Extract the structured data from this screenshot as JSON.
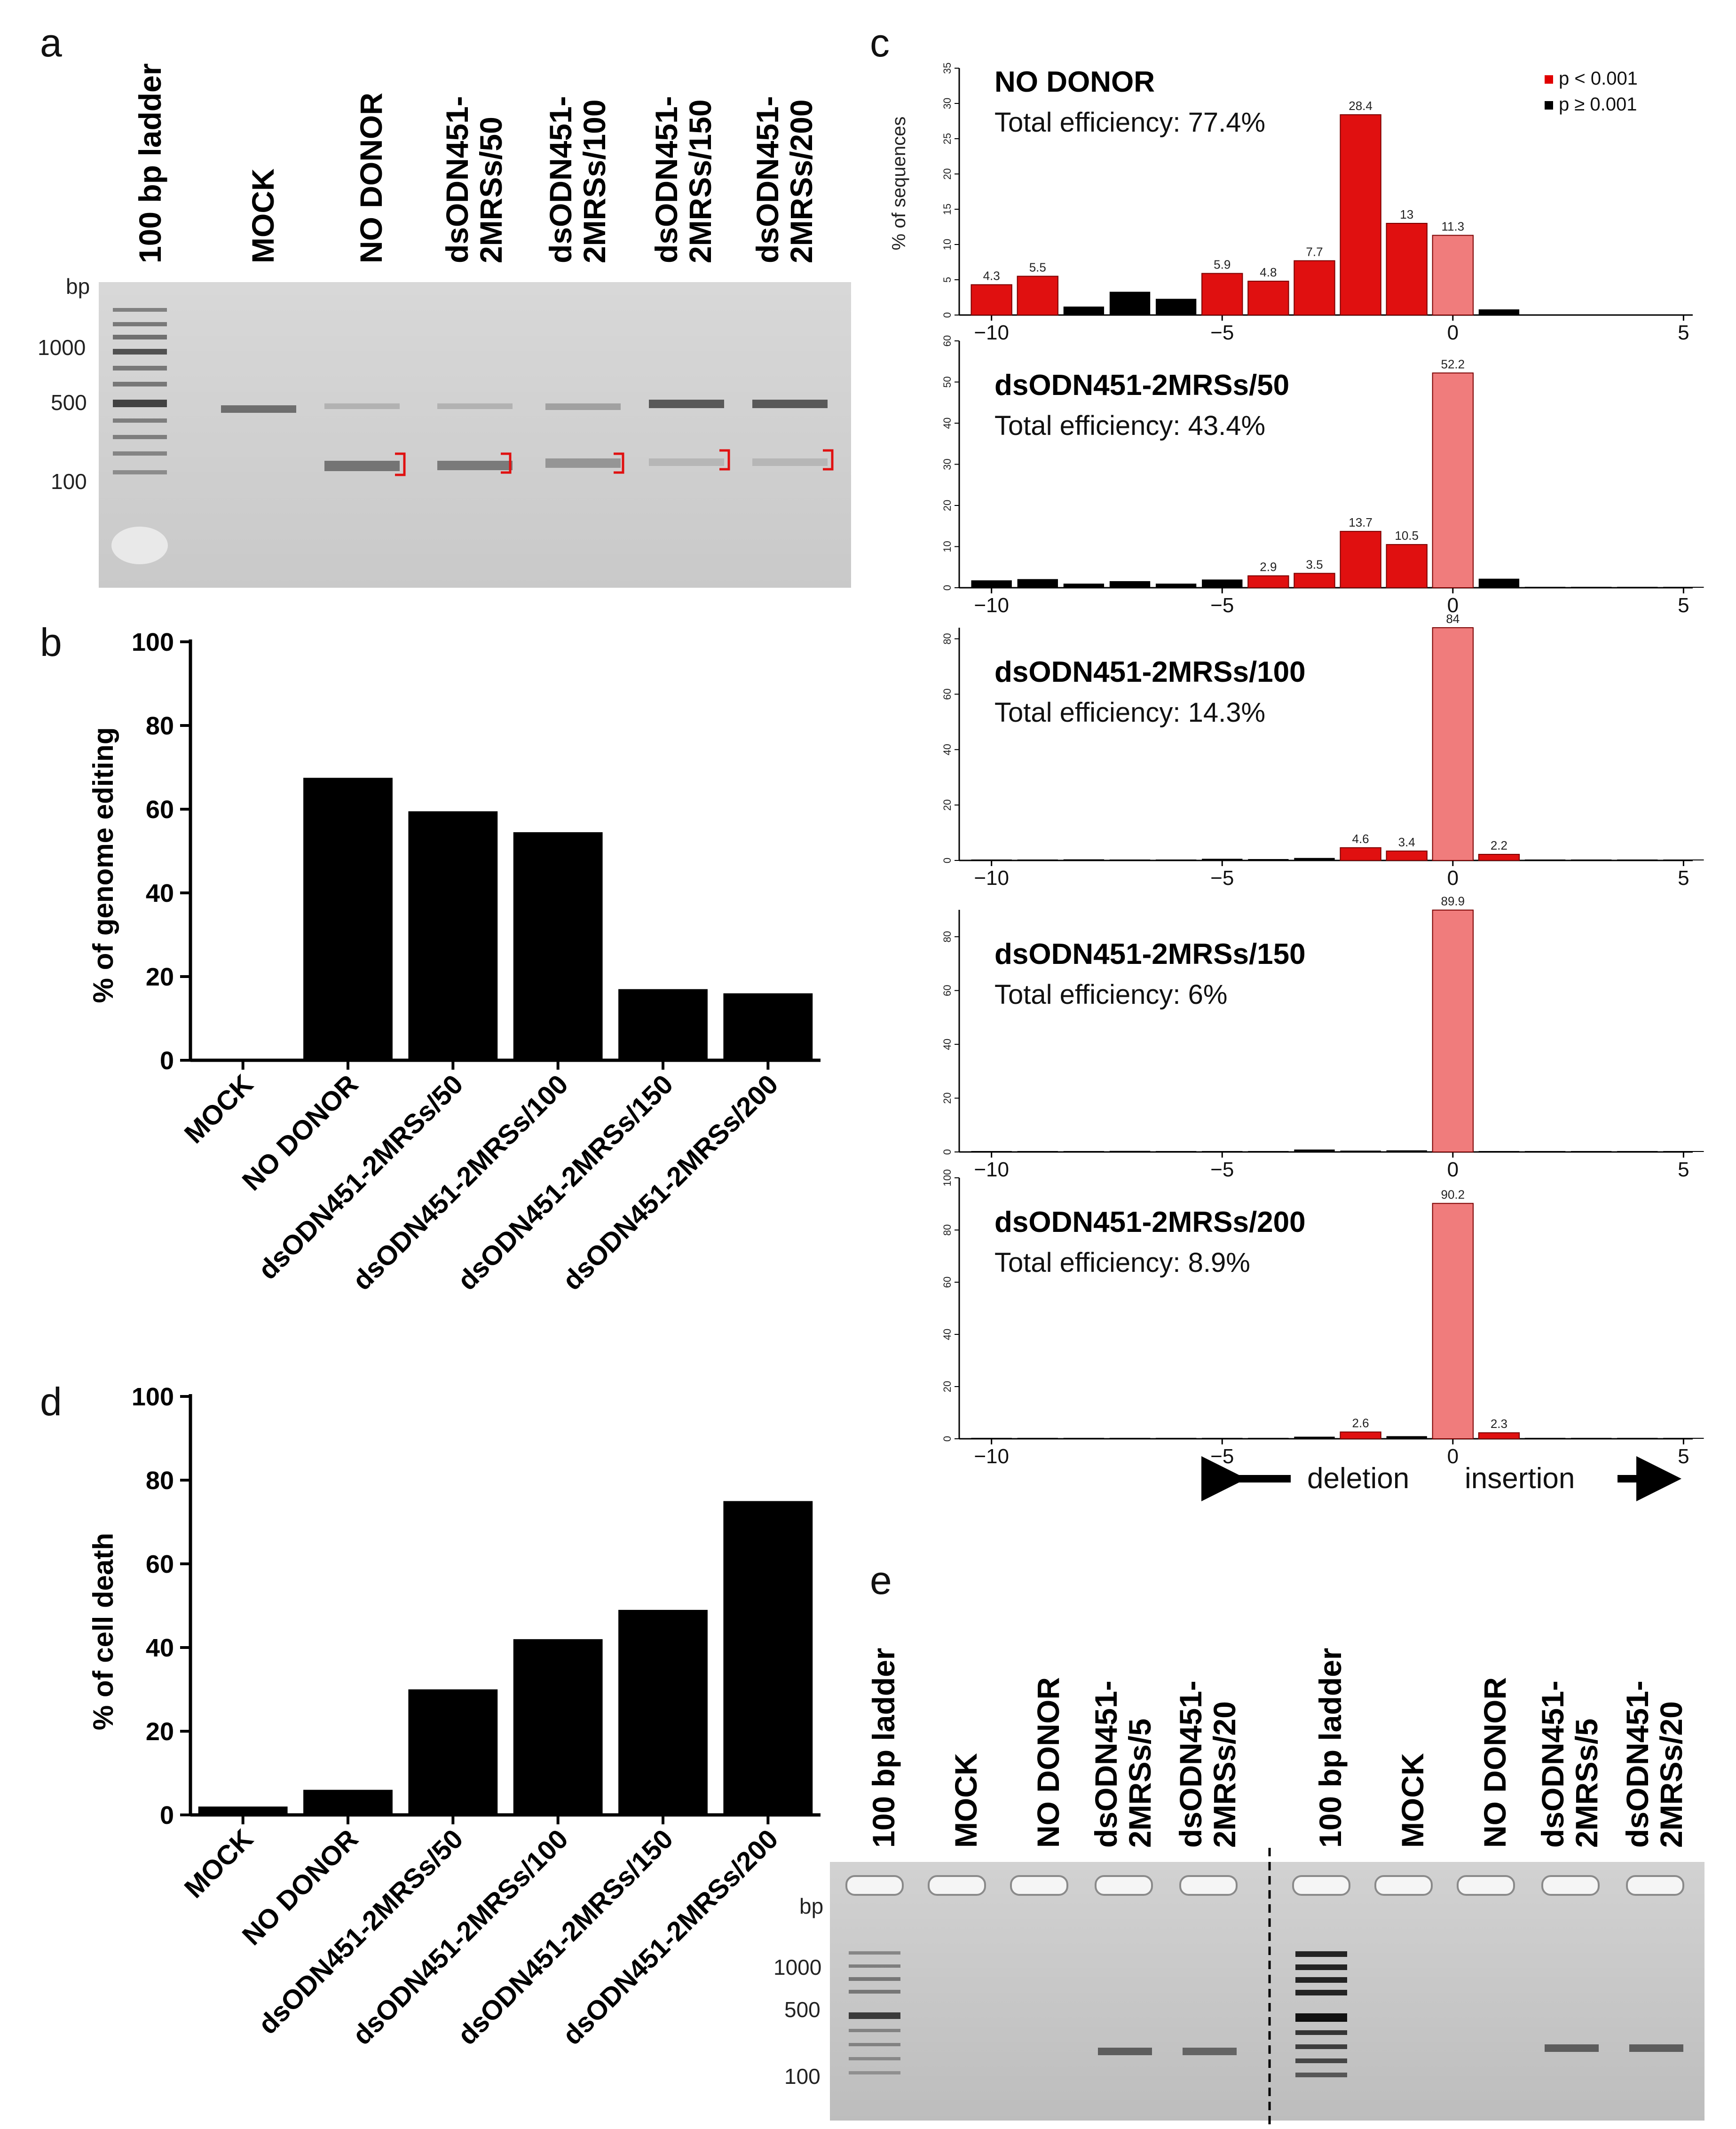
{
  "panel_a": {
    "letter": "a",
    "lanes": [
      "100 bp ladder",
      "MOCK",
      "NO DONOR",
      "dsODN451-\n2MRSs/50",
      "dsODN451-\n2MRSs/100",
      "dsODN451-\n2MRSs/150",
      "dsODN451-\n2MRSs/200"
    ],
    "bp_unit": "bp",
    "markers": [
      "1000",
      "500",
      "100"
    ]
  },
  "panel_e": {
    "letter": "e",
    "lanes": [
      "100 bp ladder",
      "MOCK",
      "NO DONOR",
      "dsODN451-\n2MRSs/5",
      "dsODN451-\n2MRSs/20",
      "100 bp ladder",
      "MOCK",
      "NO DONOR",
      "dsODN451-\n2MRSs/5",
      "dsODN451-\n2MRSs/20"
    ],
    "bp_unit": "bp",
    "markers": [
      "1000",
      "500",
      "100"
    ]
  },
  "chart_data": [
    {
      "id": "b",
      "letter": "b",
      "type": "bar",
      "ylabel": "% of genome editing",
      "ylim": [
        0,
        100
      ],
      "yticks": [
        0,
        20,
        40,
        60,
        80,
        100
      ],
      "categories": [
        "MOCK",
        "NO DONOR",
        "dsODN451-2MRSs/50",
        "dsODN451-2MRSs/100",
        "dsODN451-2MRSs/150",
        "dsODN451-2MRSs/200"
      ],
      "values": [
        0,
        67.5,
        59.5,
        54.5,
        17,
        16
      ],
      "color": "#000000"
    },
    {
      "id": "d",
      "letter": "d",
      "type": "bar",
      "ylabel": "% of cell death",
      "ylim": [
        0,
        100
      ],
      "yticks": [
        0,
        20,
        40,
        60,
        80,
        100
      ],
      "categories": [
        "MOCK",
        "NO DONOR",
        "dsODN451-2MRSs/50",
        "dsODN451-2MRSs/100",
        "dsODN451-2MRSs/150",
        "dsODN451-2MRSs/200"
      ],
      "values": [
        2,
        6,
        30,
        42,
        49,
        75
      ],
      "color": "#000000"
    },
    {
      "id": "c",
      "letter": "c",
      "type": "bar",
      "ylabel": "% of sequences",
      "x": [
        -10,
        -9,
        -8,
        -7,
        -6,
        -5,
        -4,
        -3,
        -2,
        -1,
        0,
        1,
        2,
        3,
        4,
        5
      ],
      "xticks": [
        -10,
        -5,
        0,
        5
      ],
      "legend": {
        "position": "top-right",
        "entries": [
          {
            "label": "p < 0.001",
            "color": "#e00000"
          },
          {
            "label": "p ≥ 0.001",
            "color": "#000000"
          }
        ]
      },
      "colors": {
        "sig": "#e01010",
        "nonsig": "#000000",
        "zero": "#f07c7c"
      },
      "annotations": {
        "deletion": "deletion",
        "insertion": "insertion"
      },
      "panels": [
        {
          "title": "NO DONOR",
          "subtitle": "Total efficiency: 77.4%",
          "ylim": [
            0,
            35
          ],
          "yticks": [
            0,
            5,
            10,
            15,
            20,
            25,
            30,
            35
          ],
          "values": [
            4.3,
            5.5,
            1.2,
            3.3,
            2.3,
            5.9,
            4.8,
            7.7,
            28.4,
            13,
            11.3,
            0.8,
            0,
            0,
            0,
            0
          ],
          "significant": [
            true,
            true,
            false,
            false,
            false,
            true,
            true,
            true,
            true,
            true,
            true,
            false,
            false,
            false,
            false,
            false
          ],
          "labels": [
            "4.3",
            "5.5",
            "",
            "",
            "",
            "5.9",
            "4.8",
            "7.7",
            "28.4",
            "13",
            "11.3",
            "",
            "",
            "",
            "",
            ""
          ]
        },
        {
          "title": "dsODN451-2MRSs/50",
          "subtitle": "Total efficiency: 43.4%",
          "ylim": [
            0,
            60
          ],
          "yticks": [
            0,
            10,
            20,
            30,
            40,
            50,
            60
          ],
          "values": [
            1.8,
            2.1,
            1.0,
            1.6,
            1.0,
            2.0,
            2.9,
            3.5,
            13.7,
            10.5,
            52.2,
            2.2,
            0.2,
            0.2,
            0.1,
            0.1
          ],
          "significant": [
            false,
            false,
            false,
            false,
            false,
            false,
            true,
            true,
            true,
            true,
            true,
            false,
            false,
            false,
            false,
            false
          ],
          "labels": [
            "",
            "",
            "",
            "",
            "",
            "",
            "2.9",
            "3.5",
            "13.7",
            "10.5",
            "52.2",
            "",
            "",
            "",
            "",
            ""
          ]
        },
        {
          "title": "dsODN451-2MRSs/100",
          "subtitle": "Total efficiency: 14.3%",
          "ylim": [
            0,
            84
          ],
          "yticks": [
            0,
            20,
            40,
            60,
            80
          ],
          "values": [
            0.3,
            0.2,
            0.4,
            0.2,
            0.2,
            0.6,
            0.5,
            0.9,
            4.6,
            3.4,
            84,
            2.2,
            0.1,
            0.1,
            0.1,
            0.1
          ],
          "significant": [
            false,
            false,
            false,
            false,
            false,
            false,
            false,
            false,
            true,
            true,
            true,
            true,
            false,
            false,
            false,
            false
          ],
          "labels": [
            "",
            "",
            "",
            "",
            "",
            "",
            "",
            "",
            "4.6",
            "3.4",
            "84",
            "2.2",
            "",
            "",
            "",
            ""
          ]
        },
        {
          "title": "dsODN451-2MRSs/150",
          "subtitle": "Total efficiency: 6%",
          "ylim": [
            0,
            90
          ],
          "yticks": [
            0,
            20,
            40,
            60,
            80
          ],
          "values": [
            0.2,
            0.2,
            0.3,
            0.4,
            0.2,
            0.2,
            0.3,
            0.9,
            0.5,
            0.6,
            89.9,
            0.1,
            0.1,
            0.1,
            0.1,
            0.1
          ],
          "significant": [
            false,
            false,
            false,
            false,
            false,
            false,
            false,
            false,
            false,
            false,
            true,
            false,
            false,
            false,
            false,
            false
          ],
          "labels": [
            "",
            "",
            "",
            "",
            "",
            "",
            "",
            "",
            "",
            "",
            "89.9",
            "",
            "",
            "",
            "",
            ""
          ]
        },
        {
          "title": "dsODN451-2MRSs/200",
          "subtitle": "Total efficiency: 8.9%",
          "ylim": [
            0,
            100
          ],
          "yticks": [
            0,
            20,
            40,
            60,
            80,
            100
          ],
          "values": [
            0.2,
            0.2,
            0.2,
            0.2,
            0.2,
            0.3,
            0.3,
            0.8,
            2.6,
            1.0,
            90.2,
            2.3,
            0.2,
            0.2,
            0.1,
            0.1
          ],
          "significant": [
            false,
            false,
            false,
            false,
            false,
            false,
            false,
            false,
            true,
            false,
            true,
            true,
            false,
            false,
            false,
            false
          ],
          "labels": [
            "",
            "",
            "",
            "",
            "",
            "",
            "",
            "",
            "2.6",
            "",
            "90.2",
            "2.3",
            "",
            "",
            "",
            ""
          ]
        }
      ]
    }
  ]
}
